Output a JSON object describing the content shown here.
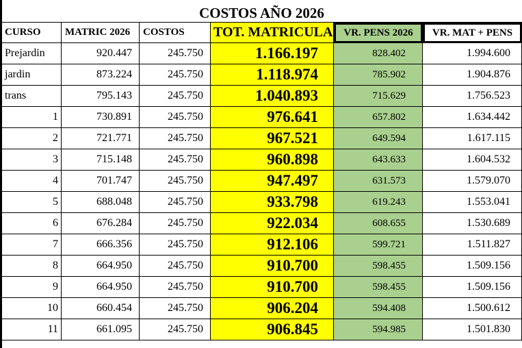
{
  "title": "COSTOS AÑO 2026",
  "headers": [
    "CURSO",
    "MATRIC 2026",
    "COSTOS",
    "TOT. MATRICULA",
    "VR. PENS 2026",
    "VR. MAT + PENS"
  ],
  "rows": [
    [
      "Prejardin",
      "920.447",
      "245.750",
      "1.166.197",
      "828.402",
      "1.994.600"
    ],
    [
      "jardin",
      "873.224",
      "245.750",
      "1.118.974",
      "785.902",
      "1.904.876"
    ],
    [
      "trans",
      "795.143",
      "245.750",
      "1.040.893",
      "715.629",
      "1.756.523"
    ],
    [
      "1",
      "730.891",
      "245.750",
      "976.641",
      "657.802",
      "1.634.442"
    ],
    [
      "2",
      "721.771",
      "245.750",
      "967.521",
      "649.594",
      "1.617.115"
    ],
    [
      "3",
      "715.148",
      "245.750",
      "960.898",
      "643.633",
      "1.604.532"
    ],
    [
      "4",
      "701.747",
      "245.750",
      "947.497",
      "631.573",
      "1.579.070"
    ],
    [
      "5",
      "688.048",
      "245.750",
      "933.798",
      "619.243",
      "1.553.041"
    ],
    [
      "6",
      "676.284",
      "245.750",
      "922.034",
      "608.655",
      "1.530.689"
    ],
    [
      "7",
      "666.356",
      "245.750",
      "912.106",
      "599.721",
      "1.511.827"
    ],
    [
      "8",
      "664.950",
      "245.750",
      "910.700",
      "598.455",
      "1.509.156"
    ],
    [
      "9",
      "664.950",
      "245.750",
      "910.700",
      "598.455",
      "1.509.156"
    ],
    [
      "10",
      "660.454",
      "245.750",
      "906.204",
      "594.408",
      "1.500.612"
    ],
    [
      "11",
      "661.095",
      "245.750",
      "906.845",
      "594.985",
      "1.501.830"
    ]
  ],
  "colors": {
    "tot_matricula_fill": "#ffff00",
    "vr_pens_fill": "#a9d08e",
    "grid": "#000000"
  }
}
